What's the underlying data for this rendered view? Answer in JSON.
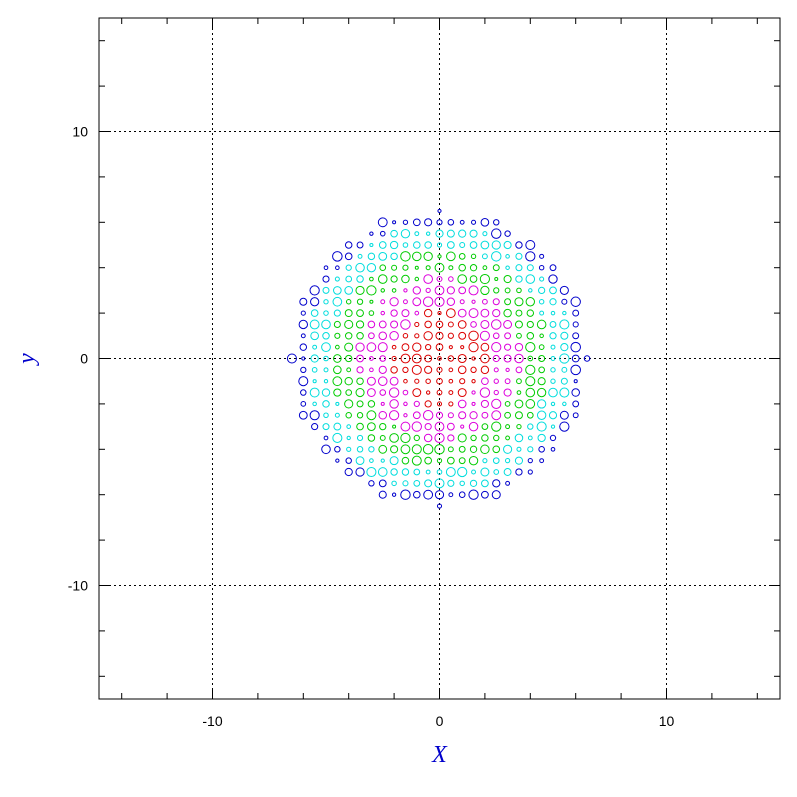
{
  "chart_data": {
    "type": "scatter",
    "title": "",
    "xlabel": "X",
    "ylabel": "y",
    "xlim": [
      -15,
      15
    ],
    "ylim": [
      -15,
      15
    ],
    "grid": true,
    "grid_x": [
      -10,
      0,
      10
    ],
    "grid_y": [
      -10,
      0,
      10
    ],
    "xticks": [
      -10,
      0,
      10
    ],
    "yticks": [
      -10,
      0,
      10
    ],
    "xtick_labels": [
      "-10",
      "0",
      "10"
    ],
    "ytick_labels": [
      "-10",
      "0",
      "10"
    ],
    "colors": {
      "r0": "#dd0000",
      "r1": "#dd00dd",
      "r2": "#00cc00",
      "r3": "#00dddd",
      "r4": "#0000cc"
    },
    "marker": "open-circle",
    "grid_step": 0.5,
    "disc_radius": 6.5,
    "ring_edges": [
      2.1,
      3.6,
      4.9,
      5.9
    ]
  }
}
